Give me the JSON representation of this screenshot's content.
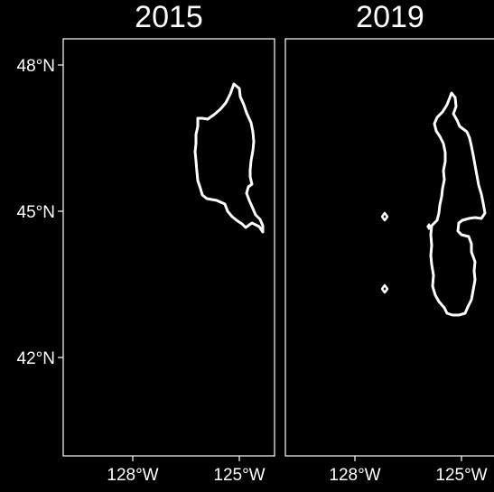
{
  "colors": {
    "background": "#000000",
    "stroke": "#ffffff",
    "text": "#ffffff"
  },
  "panels": [
    {
      "title": "2015"
    },
    {
      "title": "2019"
    }
  ],
  "axes": {
    "y_ticks": [
      "48°N",
      "45°N",
      "42°N"
    ],
    "x_ticks": [
      "128°W",
      "125°W"
    ]
  }
}
